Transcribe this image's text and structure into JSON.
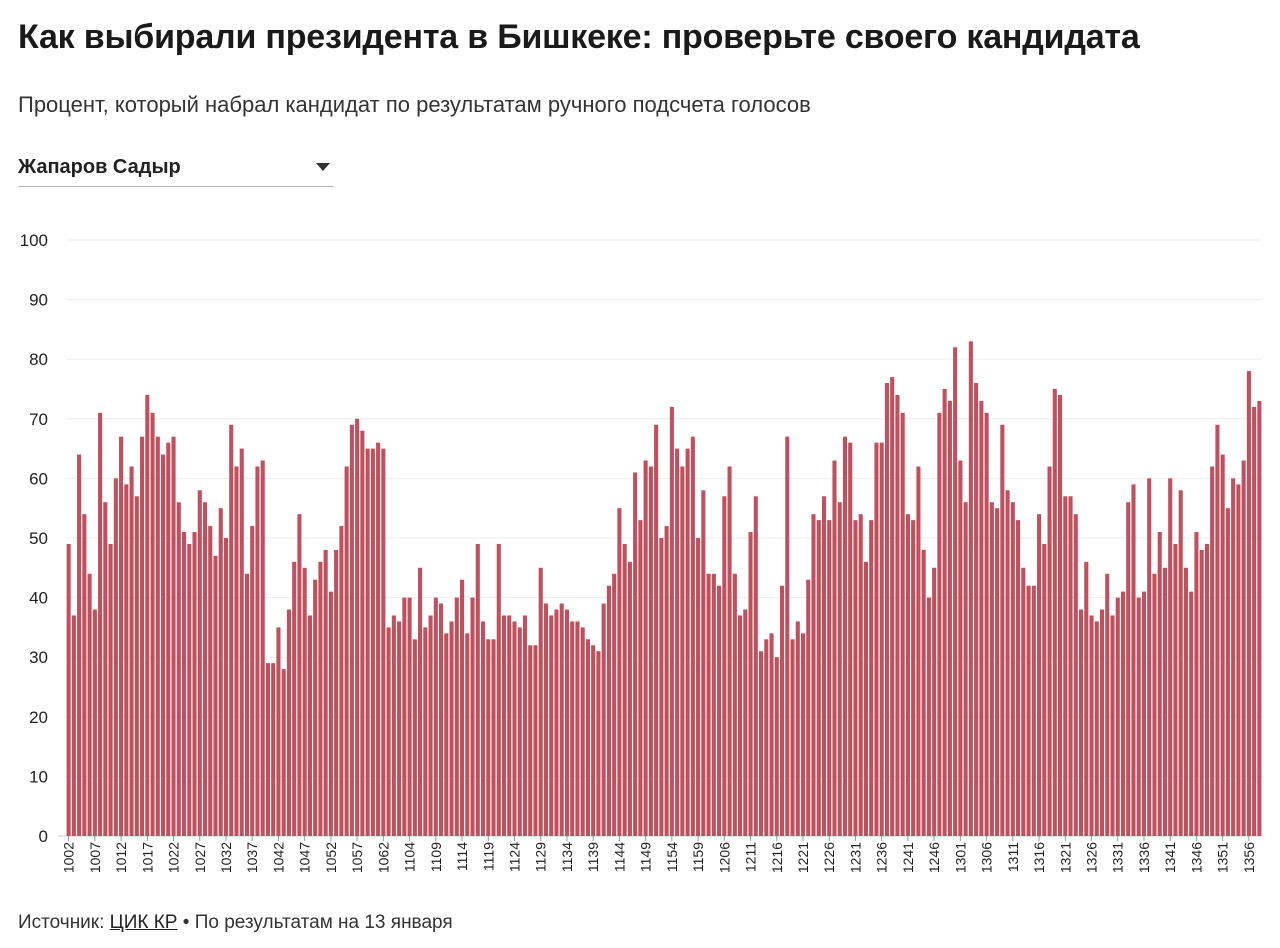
{
  "header": {
    "title": "Как выбирали президента в Бишкеке: проверьте своего кандидата",
    "subtitle": "Процент, который набрал кандидат по результатам ручного подсчета голосов"
  },
  "selector": {
    "selected": "Жапаров Садыр"
  },
  "footer": {
    "source_prefix": "Источник: ",
    "source_link": "ЦИК КР",
    "source_note": " • По результатам на 13 января"
  },
  "colors": {
    "bar": "#c0505e",
    "grid": "#eeeeee"
  },
  "chart_data": {
    "type": "bar",
    "ylim": [
      0,
      100
    ],
    "y_ticks": [
      0,
      10,
      20,
      30,
      40,
      50,
      60,
      70,
      80,
      90,
      100
    ],
    "grid": true,
    "x_tick_labels": [
      "1002",
      "1007",
      "1012",
      "1017",
      "1022",
      "1027",
      "1032",
      "1037",
      "1042",
      "1047",
      "1052",
      "1057",
      "1062",
      "1104",
      "1109",
      "1114",
      "1119",
      "1124",
      "1129",
      "1134",
      "1139",
      "1144",
      "1149",
      "1154",
      "1159",
      "1206",
      "1211",
      "1216",
      "1221",
      "1226",
      "1231",
      "1236",
      "1241",
      "1246",
      "1301",
      "1306",
      "1311",
      "1316",
      "1321",
      "1326",
      "1331",
      "1336",
      "1341",
      "1346",
      "1351",
      "1356"
    ],
    "values": [
      49,
      37,
      64,
      54,
      44,
      38,
      71,
      56,
      49,
      60,
      67,
      59,
      62,
      57,
      67,
      74,
      71,
      67,
      64,
      66,
      67,
      56,
      51,
      49,
      51,
      58,
      56,
      52,
      47,
      55,
      50,
      69,
      62,
      65,
      44,
      52,
      62,
      63,
      29,
      29,
      35,
      28,
      38,
      46,
      54,
      45,
      37,
      43,
      46,
      48,
      41,
      48,
      52,
      62,
      69,
      70,
      68,
      65,
      65,
      66,
      65,
      35,
      37,
      36,
      40,
      40,
      33,
      45,
      35,
      37,
      40,
      39,
      34,
      36,
      40,
      43,
      34,
      40,
      49,
      36,
      33,
      33,
      49,
      37,
      37,
      36,
      35,
      37,
      32,
      32,
      45,
      39,
      37,
      38,
      39,
      38,
      36,
      36,
      35,
      33,
      32,
      31,
      39,
      42,
      44,
      55,
      49,
      46,
      61,
      53,
      63,
      62,
      69,
      50,
      52,
      72,
      65,
      62,
      65,
      67,
      50,
      58,
      44,
      44,
      42,
      57,
      62,
      44,
      37,
      38,
      51,
      57,
      31,
      33,
      34,
      30,
      42,
      67,
      33,
      36,
      34,
      43,
      54,
      53,
      57,
      53,
      63,
      56,
      67,
      66,
      53,
      54,
      46,
      53,
      66,
      66,
      76,
      77,
      74,
      71,
      54,
      53,
      62,
      48,
      40,
      45,
      71,
      75,
      73,
      82,
      63,
      56,
      83,
      76,
      73,
      71,
      56,
      55,
      69,
      58,
      56,
      53,
      45,
      42,
      42,
      54,
      49,
      62,
      75,
      74,
      57,
      57,
      54,
      38,
      46,
      37,
      36,
      38,
      44,
      37,
      40,
      41,
      56,
      59,
      40,
      41,
      60,
      44,
      51,
      45,
      60,
      49,
      58,
      45,
      41,
      51,
      48,
      49,
      62,
      69,
      64,
      55,
      60,
      59,
      63,
      78,
      72,
      73
    ]
  }
}
